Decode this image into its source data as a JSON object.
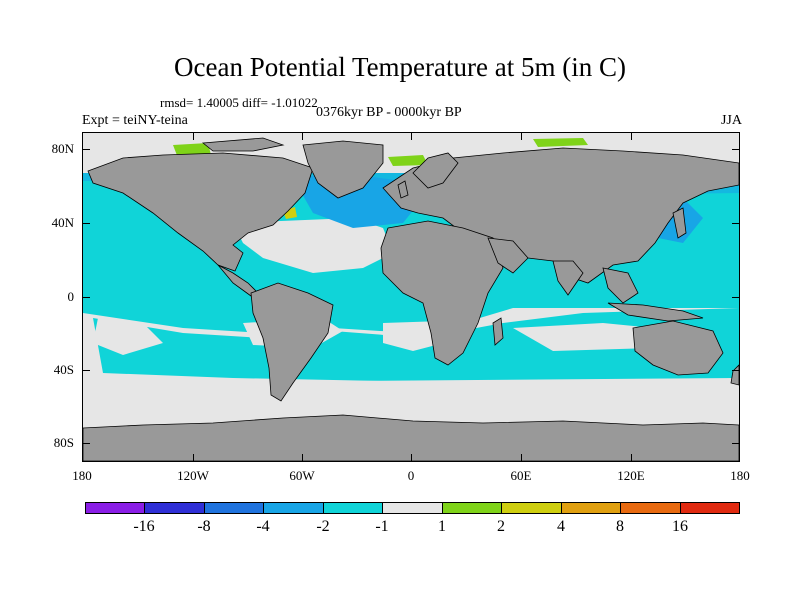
{
  "title": "Ocean Potential Temperature at 5m (in C)",
  "stats": "rmsd= 1.40005 diff= -1.01022",
  "experiment": "Expt = teiNY-teina",
  "period": "0376kyr BP - 0000kyr BP",
  "season": "JJA",
  "axes": {
    "lat_labels": [
      "80N",
      "40N",
      "0",
      "40S",
      "80S"
    ],
    "lon_labels": [
      "180",
      "120W",
      "60W",
      "0",
      "60E",
      "120E",
      "180"
    ]
  },
  "colors": {
    "land": "#999999",
    "coastline": "#000000"
  },
  "colorbar": {
    "colors": [
      "#8a1ee6",
      "#2f2fd6",
      "#1f73de",
      "#18a5e6",
      "#10d4d8",
      "#e6e6e6",
      "#7fd319",
      "#cfcf10",
      "#e0a010",
      "#e86a10",
      "#e02a10"
    ],
    "labels": [
      "-16",
      "-8",
      "-4",
      "-2",
      "-1",
      "1",
      "2",
      "4",
      "8",
      "16"
    ]
  }
}
